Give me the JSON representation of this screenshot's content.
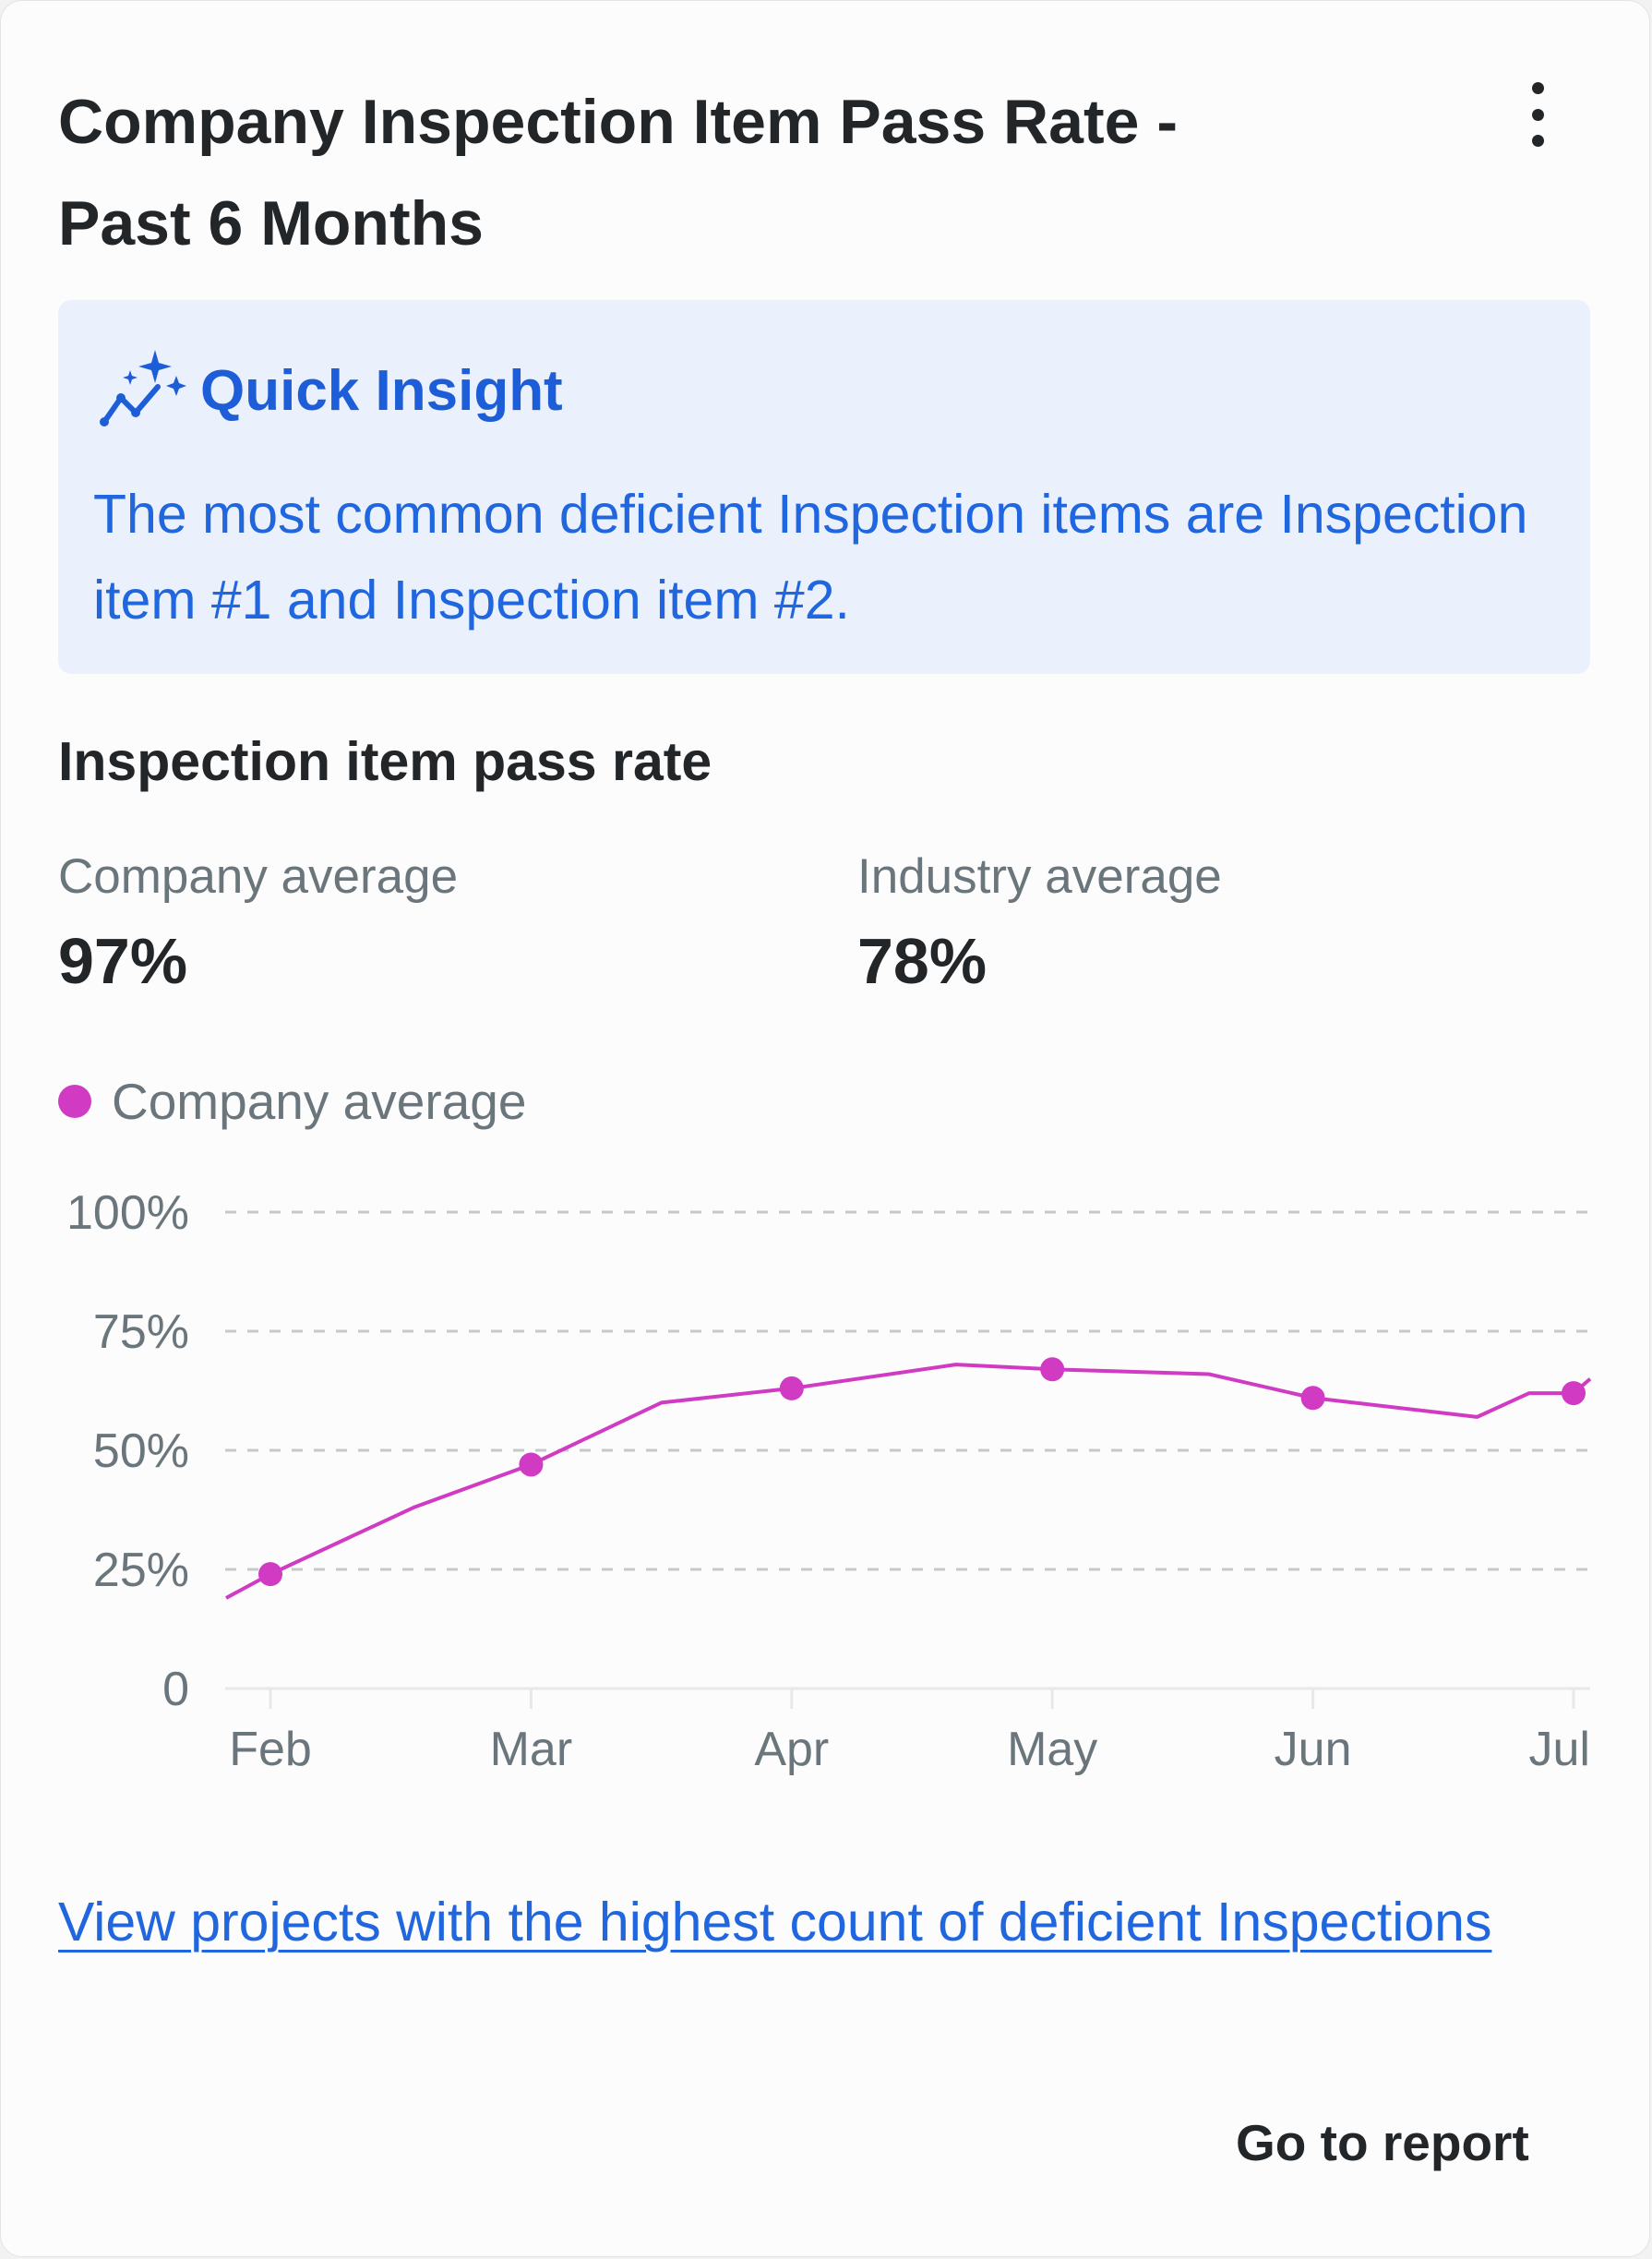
{
  "card": {
    "title": "Company Inspection Item Pass Rate - Past 6 Months",
    "menu_icon": "more-vertical-icon"
  },
  "insight": {
    "icon": "sparkle-trend-icon",
    "title": "Quick Insight",
    "text": "The most common deficient Inspection items are Inspection item #1 and Inspection item #2."
  },
  "metrics": {
    "section_title": "Inspection item pass rate",
    "company_label": "Company average",
    "company_value": "97%",
    "industry_label": "Industry average",
    "industry_value": "78%"
  },
  "chart_data": {
    "type": "line",
    "legend": [
      {
        "name": "Company average",
        "color": "#d13ac3"
      }
    ],
    "y_ticks": [
      "100%",
      "75%",
      "50%",
      "25%",
      "0"
    ],
    "y_tick_values": [
      100,
      75,
      50,
      25,
      0
    ],
    "x_ticks": [
      "Feb",
      "Mar",
      "Apr",
      "May",
      "Jun",
      "Jul"
    ],
    "ylim": [
      0,
      100
    ],
    "grid": "dashed horizontal",
    "series": [
      {
        "name": "Company average",
        "color": "#d13ac3",
        "x": [
          -0.17,
          0,
          0.55,
          1,
          1.5,
          2,
          2.63,
          3,
          3.6,
          4,
          4.63,
          4.83,
          5,
          5.17
        ],
        "values": [
          19,
          24,
          38,
          47,
          60,
          63,
          68,
          67,
          66,
          61,
          57,
          62,
          62,
          65
        ],
        "markers": [
          0,
          1,
          2,
          3,
          4,
          5
        ]
      }
    ]
  },
  "footer": {
    "link_text": "View projects with the highest count of deficient Inspections",
    "go_to_report": "Go to report"
  }
}
